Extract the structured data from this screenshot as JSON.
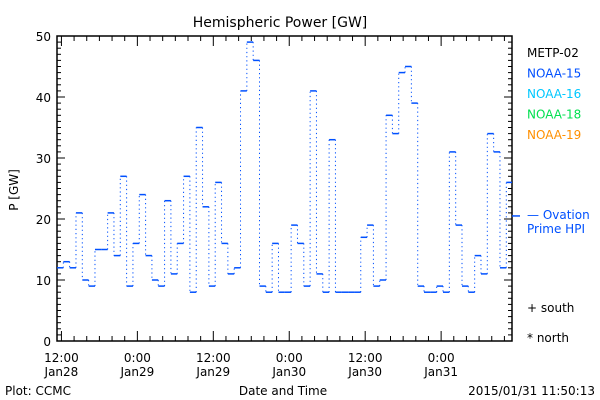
{
  "chart_data": {
    "type": "line",
    "title": "Hemispheric Power [GW]",
    "xlabel": "Date and Time",
    "ylabel": "P [GW]",
    "ylim": [
      0,
      50
    ],
    "yticks": [
      "0",
      "10",
      "20",
      "30",
      "40",
      "50"
    ],
    "x_unit": "hours since 2015-01-28 12:00",
    "xlim": [
      -0.7,
      71.2
    ],
    "xticks": [
      {
        "h": 0,
        "time": "12:00",
        "date": "Jan28"
      },
      {
        "h": 12,
        "time": "0:00",
        "date": "Jan29"
      },
      {
        "h": 24,
        "time": "12:00",
        "date": "Jan29"
      },
      {
        "h": 36,
        "time": "0:00",
        "date": "Jan30"
      },
      {
        "h": 48,
        "time": "12:00",
        "date": "Jan30"
      },
      {
        "h": 60,
        "time": "0:00",
        "date": "Jan31"
      }
    ],
    "series": [
      {
        "name": "NOAA-15",
        "color": "#0050ff",
        "start_hour": -0.7,
        "step_hours": 1,
        "values": [
          12,
          13,
          12,
          21,
          10,
          9,
          15,
          15,
          21,
          14,
          27,
          9,
          16,
          24,
          14,
          10,
          9,
          23,
          11,
          16,
          27,
          8,
          35,
          22,
          9,
          26,
          16,
          11,
          12,
          41,
          49,
          46,
          9,
          8,
          16,
          8,
          8,
          19,
          16,
          9,
          41,
          11,
          8,
          33,
          8,
          8,
          8,
          8,
          17,
          19,
          9,
          10,
          37,
          34,
          44,
          45,
          39,
          9,
          8,
          8,
          9,
          8,
          31,
          19,
          9,
          8,
          14,
          11,
          34,
          31,
          12,
          26
        ]
      }
    ],
    "ovation_prime_hpi": 20.5,
    "legend": {
      "placement": "right",
      "entries": [
        {
          "label": "METP-02",
          "color": "#000000"
        },
        {
          "label": "NOAA-15",
          "color": "#0050ff"
        },
        {
          "label": "NOAA-16",
          "color": "#00c8ff"
        },
        {
          "label": "NOAA-18",
          "color": "#00e050"
        },
        {
          "label": "NOAA-19",
          "color": "#ff9000"
        }
      ],
      "ovation_label_1": "— Ovation",
      "ovation_label_2": "Prime HPI",
      "south": "+ south",
      "north": "* north"
    },
    "footer_left": "Plot: CCMC",
    "footer_right": "2015/01/31 11:50:13"
  }
}
